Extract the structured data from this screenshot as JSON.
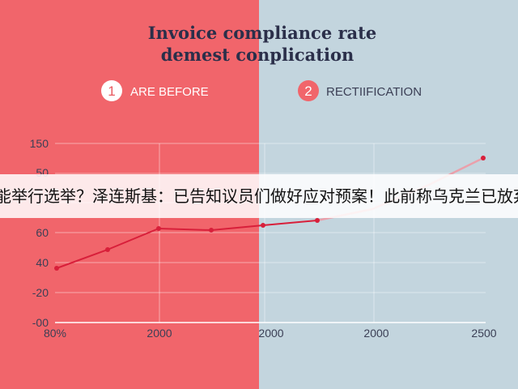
{
  "title": [
    "Invoice compliance rate",
    "demest conplication"
  ],
  "steps": [
    {
      "number": "1",
      "label": "ARE BEFORE"
    },
    {
      "number": "2",
      "label": "RECTIIFICATION"
    }
  ],
  "y_labels": [
    "150",
    "50",
    "60",
    "40",
    "-20",
    "-00"
  ],
  "x_labels": [
    "80%",
    "2000",
    "2000",
    "2000",
    "2500"
  ],
  "banner": "能举行选举？泽连斯基：已告知议员们做好应对预案！此前称乌克兰已放弃"
}
